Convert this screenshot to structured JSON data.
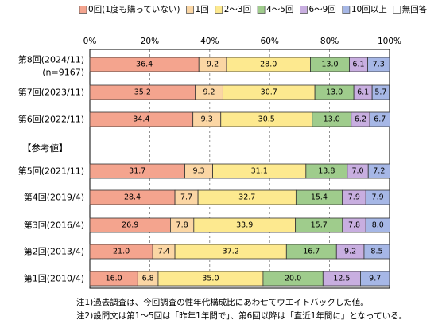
{
  "chart_data": {
    "type": "bar",
    "stacked": "percent",
    "orientation": "horizontal",
    "legend_position": "top",
    "xlim": [
      0,
      100
    ],
    "x_ticks": [
      "0%",
      "20%",
      "40%",
      "60%",
      "80%",
      "100%"
    ],
    "categories": [
      {
        "label": "第8回(2024/11)",
        "sublabel": "(n=9167)"
      },
      {
        "label": "第7回(2023/11)"
      },
      {
        "label": "第6回(2022/11)"
      },
      {
        "label": "第5回(2021/11)",
        "group_header": "【参考値】"
      },
      {
        "label": "第4回(2019/4)"
      },
      {
        "label": "第3回(2016/4)"
      },
      {
        "label": "第2回(2013/4)"
      },
      {
        "label": "第1回(2010/4)"
      }
    ],
    "series": [
      {
        "name": "0回(1度も購っていない)",
        "color": "#f4a48e",
        "values": [
          36.4,
          35.2,
          34.4,
          31.7,
          28.4,
          26.9,
          21.0,
          16.0
        ]
      },
      {
        "name": "1回",
        "color": "#fbd6a4",
        "values": [
          9.2,
          9.2,
          9.3,
          9.3,
          7.7,
          7.8,
          7.4,
          6.8
        ]
      },
      {
        "name": "2〜3回",
        "color": "#fde98f",
        "values": [
          28.0,
          30.7,
          30.5,
          31.1,
          32.7,
          33.9,
          37.2,
          35.0
        ]
      },
      {
        "name": "4〜5回",
        "color": "#9fcc8c",
        "values": [
          13.0,
          13.0,
          13.0,
          13.8,
          15.4,
          15.7,
          16.7,
          20.0
        ]
      },
      {
        "name": "6〜9回",
        "color": "#c8aee0",
        "values": [
          6.1,
          6.1,
          6.2,
          7.0,
          7.9,
          7.8,
          9.2,
          12.5
        ]
      },
      {
        "name": "10回以上",
        "color": "#a6b7e6",
        "values": [
          7.3,
          5.7,
          6.7,
          7.2,
          7.9,
          8.0,
          8.5,
          9.7
        ]
      },
      {
        "name": "無回答",
        "color": "#ffffff",
        "values": [
          0,
          0,
          0,
          0,
          0,
          0,
          0,
          0
        ]
      }
    ]
  },
  "notes": [
    "注1)過去調査は、今回調査の性年代構成比にあわせてウエイトバックした値。",
    "注2)設問文は第1〜5回は「昨年1年間で」、第6回以降は「直近1年間に」となっている。"
  ]
}
